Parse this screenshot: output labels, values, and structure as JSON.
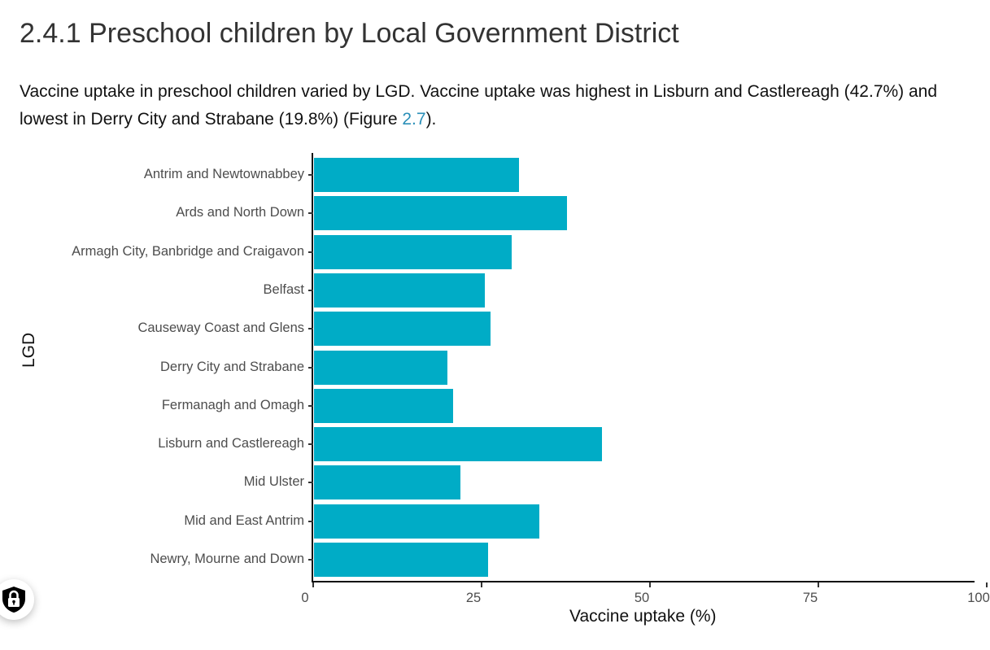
{
  "heading": "2.4.1 Preschool children by Local Government District",
  "paragraph": {
    "text_before": "Vaccine uptake in preschool children varied by LGD. Vaccine uptake was highest in Lisburn and Castlereagh (42.7%) and lowest in Derry City and Strabane (19.8%) (Figure ",
    "link": "2.7",
    "text_after": ")."
  },
  "colors": {
    "bar": "#00acc6",
    "link": "#2a8fb8"
  },
  "chart_data": {
    "type": "bar",
    "orientation": "horizontal",
    "title": "",
    "xlabel": "Vaccine uptake (%)",
    "ylabel": "LGD",
    "xlim": [
      0,
      100
    ],
    "x_ticks": [
      "0",
      "25",
      "50",
      "75",
      "100"
    ],
    "categories": [
      "Antrim and Newtownabbey",
      "Ards and North Down",
      "Armagh City, Banbridge and Craigavon",
      "Belfast",
      "Causeway Coast and Glens",
      "Derry City and Strabane",
      "Fermanagh and Omagh",
      "Lisburn and Castlereagh",
      "Mid Ulster",
      "Mid and East Antrim",
      "Newry, Mourne and Down"
    ],
    "values": [
      30.4,
      37.6,
      29.3,
      25.4,
      26.2,
      19.8,
      20.7,
      42.7,
      21.7,
      33.4,
      25.8
    ],
    "grid": false,
    "legend": null
  },
  "floating_button": {
    "icon": "shield-lock-icon"
  }
}
